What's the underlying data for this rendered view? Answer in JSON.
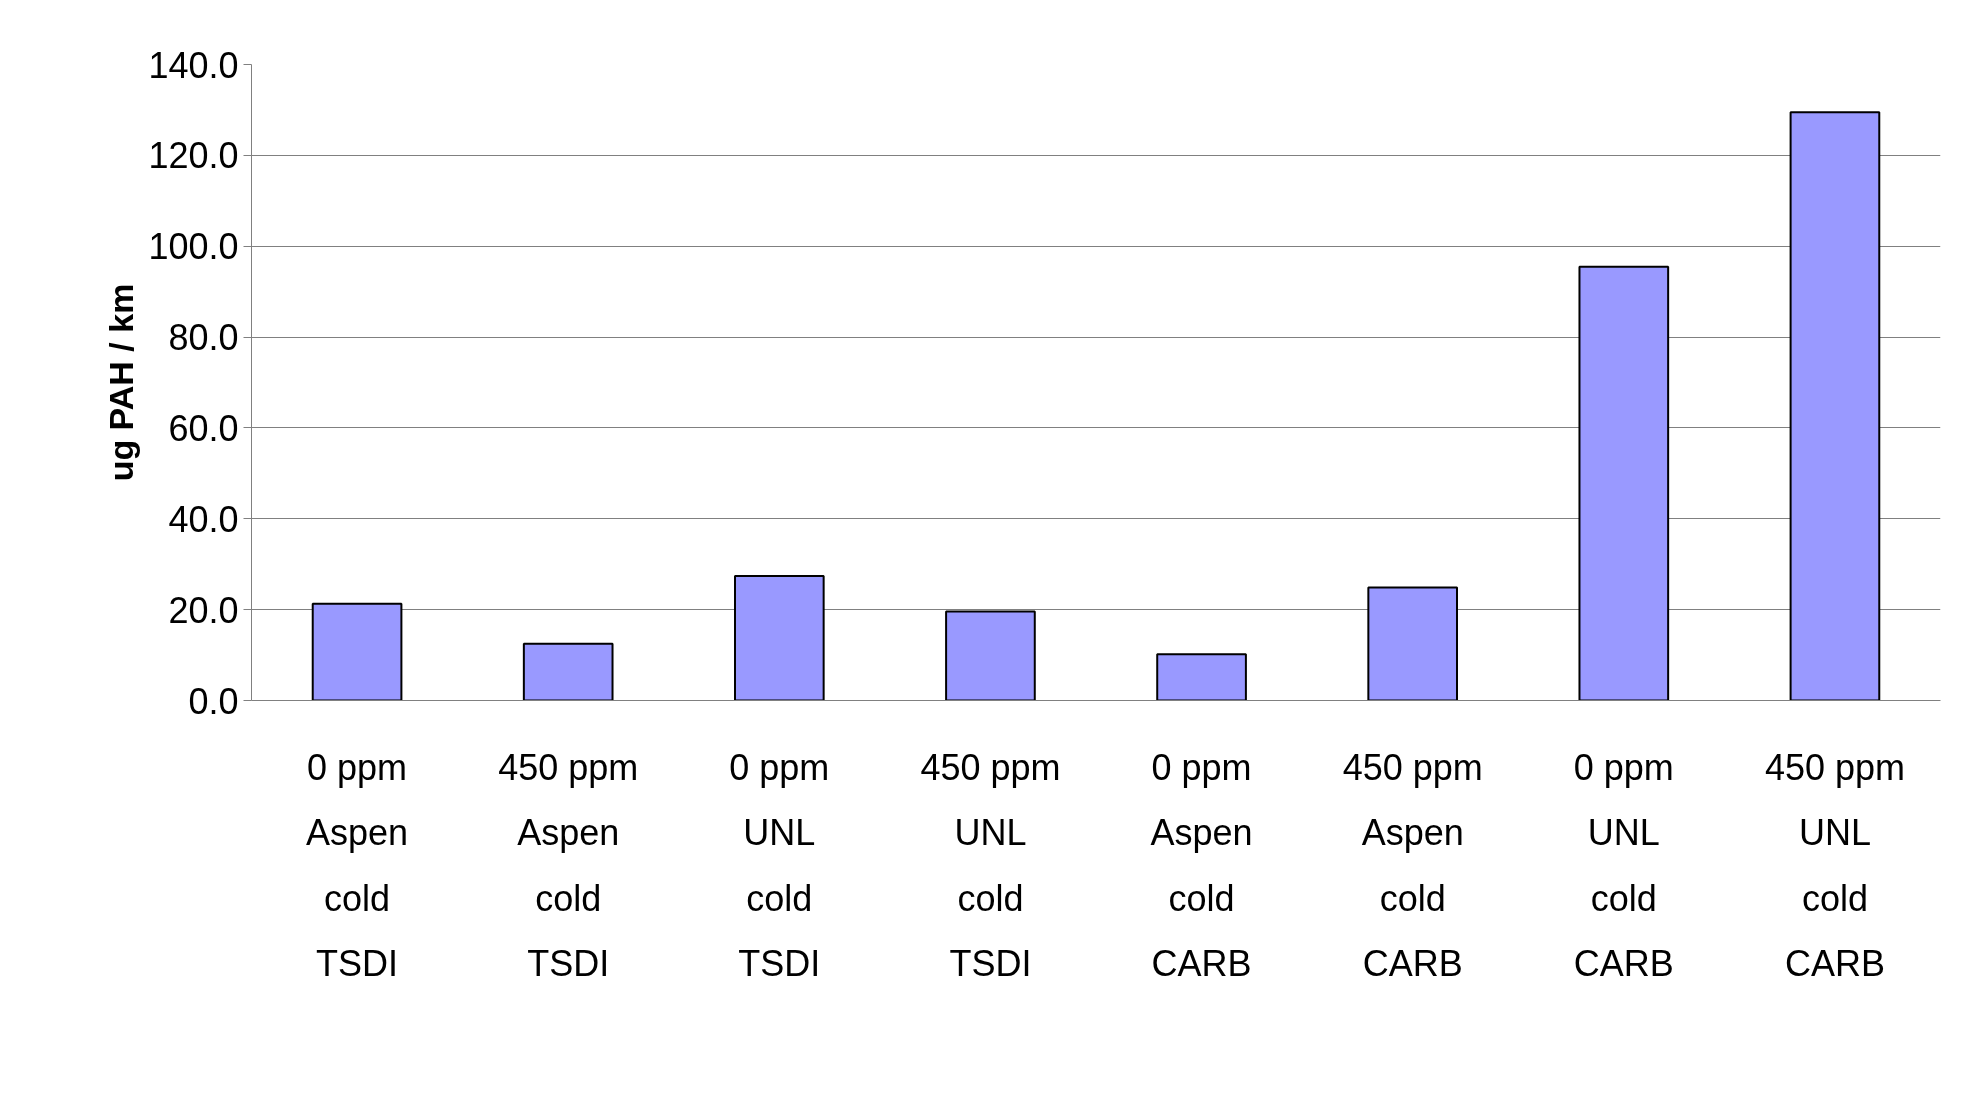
{
  "chart_data": {
    "type": "bar",
    "ylabel": "ug PAH / km",
    "categories": [
      "0 ppm\nAspen\ncold\nTSDI",
      "450 ppm\nAspen\ncold\nTSDI",
      "0 ppm\nUNL\ncold\nTSDI",
      "450 ppm\nUNL\ncold\nTSDI",
      "0 ppm\nAspen\ncold\nCARB",
      "450 ppm\nAspen\ncold\nCARB",
      "0 ppm\nUNL\ncold\nCARB",
      "450 ppm\nUNL\ncold\nCARB"
    ],
    "values": [
      21.3,
      12.5,
      27.4,
      19.6,
      10.2,
      24.9,
      95.5,
      129.5
    ],
    "color": "#9999ff",
    "ylim": [
      0,
      140
    ],
    "yticks": [
      {
        "value": 0,
        "label": "0.0"
      },
      {
        "value": 20,
        "label": "20.0"
      },
      {
        "value": 40,
        "label": "40.0"
      },
      {
        "value": 60,
        "label": "60.0"
      },
      {
        "value": 80,
        "label": "80.0"
      },
      {
        "value": 100,
        "label": "100.0"
      },
      {
        "value": 120,
        "label": "120.0"
      },
      {
        "value": 140,
        "label": "140.0"
      }
    ],
    "grid": "y"
  }
}
